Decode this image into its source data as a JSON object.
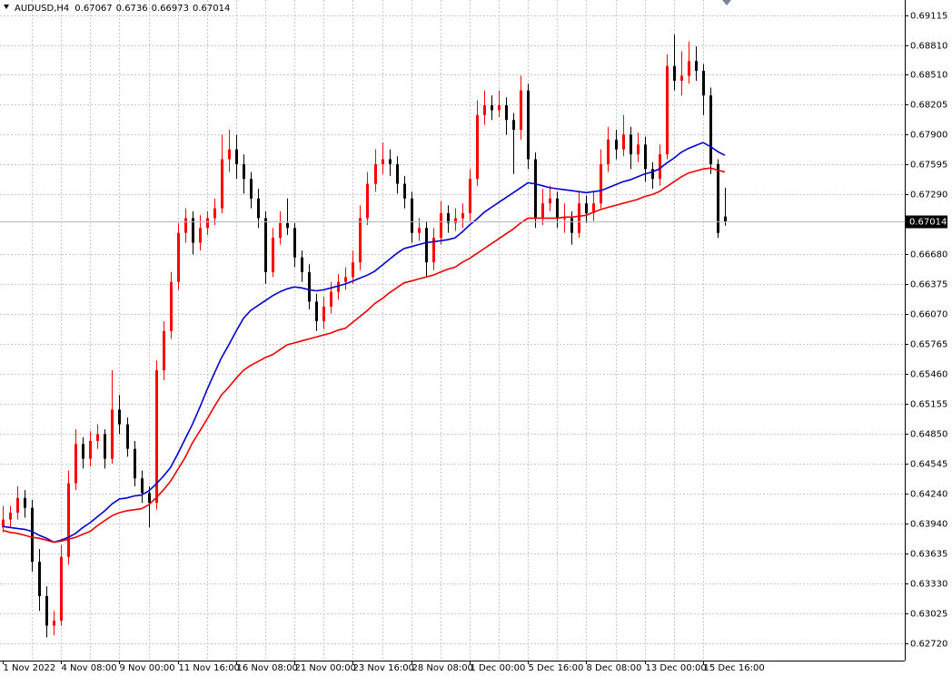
{
  "chart_data": {
    "type": "candlestick",
    "title": "AUDUSD,H4",
    "up_color": "#ff0000",
    "down_color": "#000000",
    "grid": true,
    "ylim": [
      0.62544,
      0.69272
    ],
    "yticks": [
      0.69115,
      {
        "value": 0.6881,
        "label": "0.68810"
      },
      {
        "value": 0.6851,
        "label": "0.68510"
      },
      0.68205,
      {
        "value": 0.679,
        "label": "0.67900"
      },
      0.67595,
      {
        "value": 0.6729,
        "label": "0.67290"
      },
      {
        "value": 0.6668,
        "label": "0.66680"
      },
      0.66375,
      {
        "value": 0.6607,
        "label": "0.66070"
      },
      0.65765,
      {
        "value": 0.6546,
        "label": "0.65460"
      },
      0.65155,
      {
        "value": 0.6485,
        "label": "0.64850"
      },
      0.64545,
      {
        "value": 0.6424,
        "label": "0.64240"
      },
      {
        "value": 0.6394,
        "label": "0.63940"
      },
      0.63635,
      {
        "value": 0.6333,
        "label": "0.63330"
      },
      0.63025,
      {
        "value": 0.6272,
        "label": "0.62720"
      }
    ],
    "xlabels": [
      "1 Nov 2022",
      "4 Nov 08:00",
      "9 Nov 00:00",
      "11 Nov 16:00",
      "16 Nov 08:00",
      "21 Nov 00:00",
      "23 Nov 16:00",
      "28 Nov 08:00",
      "1 Dec 00:00",
      "5 Dec 16:00",
      "8 Dec 08:00",
      "13 Dec 00:00",
      "15 Dec 16:00"
    ],
    "ohlc": [
      [
        0.639,
        0.6412,
        0.6385,
        0.6398
      ],
      [
        0.6398,
        0.6412,
        0.639,
        0.6405
      ],
      [
        0.6405,
        0.6432,
        0.6398,
        0.642
      ],
      [
        0.642,
        0.6428,
        0.64,
        0.641
      ],
      [
        0.641,
        0.6418,
        0.6345,
        0.6355
      ],
      [
        0.6355,
        0.6368,
        0.6305,
        0.632
      ],
      [
        0.632,
        0.633,
        0.6278,
        0.629
      ],
      [
        0.629,
        0.6305,
        0.628,
        0.6295
      ],
      [
        0.6295,
        0.6372,
        0.629,
        0.636
      ],
      [
        0.636,
        0.6448,
        0.6352,
        0.6435
      ],
      [
        0.6435,
        0.649,
        0.6428,
        0.6475
      ],
      [
        0.6475,
        0.6482,
        0.645,
        0.646
      ],
      [
        0.646,
        0.6488,
        0.6452,
        0.6478
      ],
      [
        0.6478,
        0.6495,
        0.647,
        0.6485
      ],
      [
        0.6485,
        0.649,
        0.645,
        0.646
      ],
      [
        0.646,
        0.655,
        0.6455,
        0.651
      ],
      [
        0.651,
        0.6525,
        0.6485,
        0.6495
      ],
      [
        0.6495,
        0.6502,
        0.6462,
        0.647
      ],
      [
        0.647,
        0.6478,
        0.6432,
        0.644
      ],
      [
        0.644,
        0.6448,
        0.6415,
        0.6425
      ],
      [
        0.6425,
        0.6432,
        0.639,
        0.6415
      ],
      [
        0.6415,
        0.656,
        0.6408,
        0.655
      ],
      [
        0.655,
        0.66,
        0.654,
        0.659
      ],
      [
        0.659,
        0.665,
        0.6582,
        0.664
      ],
      [
        0.664,
        0.67,
        0.6632,
        0.669
      ],
      [
        0.669,
        0.6715,
        0.668,
        0.6705
      ],
      [
        0.6705,
        0.6712,
        0.6668,
        0.668
      ],
      [
        0.668,
        0.6708,
        0.6672,
        0.6695
      ],
      [
        0.6695,
        0.6712,
        0.6688,
        0.6705
      ],
      [
        0.6705,
        0.6725,
        0.6698,
        0.6715
      ],
      [
        0.6715,
        0.679,
        0.671,
        0.6765
      ],
      [
        0.6765,
        0.6795,
        0.6752,
        0.6775
      ],
      [
        0.6775,
        0.679,
        0.6745,
        0.676
      ],
      [
        0.676,
        0.677,
        0.673,
        0.6745
      ],
      [
        0.6745,
        0.6752,
        0.6715,
        0.6725
      ],
      [
        0.6725,
        0.6735,
        0.6695,
        0.6705
      ],
      [
        0.6705,
        0.6712,
        0.6638,
        0.665
      ],
      [
        0.665,
        0.6695,
        0.6645,
        0.6685
      ],
      [
        0.6685,
        0.6712,
        0.6678,
        0.67
      ],
      [
        0.67,
        0.6725,
        0.6688,
        0.6695
      ],
      [
        0.6695,
        0.67,
        0.6655,
        0.6665
      ],
      [
        0.6665,
        0.6672,
        0.664,
        0.665
      ],
      [
        0.665,
        0.6658,
        0.6612,
        0.662
      ],
      [
        0.662,
        0.6628,
        0.659,
        0.66
      ],
      [
        0.66,
        0.6625,
        0.6592,
        0.6615
      ],
      [
        0.6615,
        0.664,
        0.6608,
        0.663
      ],
      [
        0.663,
        0.6648,
        0.6622,
        0.664
      ],
      [
        0.664,
        0.6655,
        0.6632,
        0.6645
      ],
      [
        0.6645,
        0.6672,
        0.6638,
        0.666
      ],
      [
        0.666,
        0.6718,
        0.6652,
        0.6705
      ],
      [
        0.6705,
        0.6752,
        0.6698,
        0.674
      ],
      [
        0.674,
        0.6775,
        0.6732,
        0.676
      ],
      [
        0.676,
        0.6782,
        0.675,
        0.6765
      ],
      [
        0.6765,
        0.6775,
        0.6748,
        0.676
      ],
      [
        0.676,
        0.6768,
        0.673,
        0.674
      ],
      [
        0.674,
        0.6748,
        0.6715,
        0.6725
      ],
      [
        0.6725,
        0.6732,
        0.668,
        0.669
      ],
      [
        0.669,
        0.6705,
        0.6682,
        0.6695
      ],
      [
        0.6695,
        0.6702,
        0.6645,
        0.666
      ],
      [
        0.666,
        0.6695,
        0.6652,
        0.6685
      ],
      [
        0.6685,
        0.6722,
        0.6678,
        0.671
      ],
      [
        0.671,
        0.6718,
        0.669,
        0.67
      ],
      [
        0.67,
        0.6715,
        0.6692,
        0.6705
      ],
      [
        0.6705,
        0.672,
        0.6695,
        0.671
      ],
      [
        0.671,
        0.6755,
        0.6702,
        0.6745
      ],
      [
        0.6745,
        0.6825,
        0.6738,
        0.681
      ],
      [
        0.681,
        0.6835,
        0.68,
        0.682
      ],
      [
        0.682,
        0.683,
        0.6805,
        0.6815
      ],
      [
        0.6815,
        0.6835,
        0.6808,
        0.682
      ],
      [
        0.682,
        0.6828,
        0.679,
        0.6805
      ],
      [
        0.6805,
        0.6812,
        0.675,
        0.6795
      ],
      [
        0.6795,
        0.685,
        0.6785,
        0.6835
      ],
      [
        0.6835,
        0.6842,
        0.6755,
        0.6765
      ],
      [
        0.6765,
        0.6772,
        0.6695,
        0.6705
      ],
      [
        0.6705,
        0.6735,
        0.6698,
        0.672
      ],
      [
        0.672,
        0.6738,
        0.6712,
        0.6725
      ],
      [
        0.6725,
        0.6732,
        0.6695,
        0.6705
      ],
      [
        0.6705,
        0.672,
        0.669,
        0.6705
      ],
      [
        0.6705,
        0.6712,
        0.6678,
        0.669
      ],
      [
        0.669,
        0.6732,
        0.6685,
        0.672
      ],
      [
        0.672,
        0.6728,
        0.67,
        0.671
      ],
      [
        0.671,
        0.6732,
        0.6702,
        0.672
      ],
      [
        0.672,
        0.6775,
        0.6715,
        0.676
      ],
      [
        0.676,
        0.6798,
        0.6752,
        0.6785
      ],
      [
        0.6785,
        0.6795,
        0.6765,
        0.6775
      ],
      [
        0.6775,
        0.681,
        0.6768,
        0.679
      ],
      [
        0.679,
        0.6798,
        0.6755,
        0.677
      ],
      [
        0.677,
        0.6792,
        0.6762,
        0.678
      ],
      [
        0.678,
        0.6788,
        0.6742,
        0.6755
      ],
      [
        0.6755,
        0.6762,
        0.6735,
        0.6745
      ],
      [
        0.6745,
        0.678,
        0.6738,
        0.677
      ],
      [
        0.677,
        0.6872,
        0.6765,
        0.686
      ],
      [
        0.686,
        0.6892,
        0.6835,
        0.6845
      ],
      [
        0.6845,
        0.6875,
        0.683,
        0.685
      ],
      [
        0.685,
        0.6885,
        0.6842,
        0.6865
      ],
      [
        0.6865,
        0.688,
        0.6845,
        0.6855
      ],
      [
        0.6855,
        0.6862,
        0.681,
        0.683
      ],
      [
        0.683,
        0.6838,
        0.675,
        0.676
      ],
      [
        0.676,
        0.6765,
        0.6685,
        0.669
      ],
      [
        0.67067,
        0.6736,
        0.66973,
        0.67014
      ]
    ],
    "series": [
      {
        "color": "#0000cc",
        "values": [
          0.6391,
          0.639,
          0.6389,
          0.6388,
          0.6386,
          0.6382,
          0.6379,
          0.6375,
          0.6377,
          0.638,
          0.6384,
          0.639,
          0.6395,
          0.6401,
          0.6407,
          0.6414,
          0.6419,
          0.642,
          0.6422,
          0.6423,
          0.6427,
          0.6434,
          0.6442,
          0.6451,
          0.6465,
          0.648,
          0.6495,
          0.6512,
          0.653,
          0.6547,
          0.6563,
          0.6576,
          0.659,
          0.6603,
          0.6611,
          0.6616,
          0.6621,
          0.6626,
          0.663,
          0.6633,
          0.6635,
          0.6634,
          0.6632,
          0.6631,
          0.6632,
          0.6634,
          0.6636,
          0.6638,
          0.6641,
          0.6644,
          0.6647,
          0.6651,
          0.6657,
          0.6663,
          0.6669,
          0.6674,
          0.6676,
          0.6678,
          0.668,
          0.6681,
          0.6682,
          0.6683,
          0.6685,
          0.6691,
          0.6698,
          0.6704,
          0.6711,
          0.6716,
          0.6721,
          0.6726,
          0.6731,
          0.6736,
          0.6741,
          0.674,
          0.6738,
          0.6736,
          0.6735,
          0.6734,
          0.6733,
          0.6732,
          0.6731,
          0.6732,
          0.6733,
          0.6736,
          0.6739,
          0.6742,
          0.6744,
          0.6747,
          0.675,
          0.6752,
          0.6755,
          0.6761,
          0.6766,
          0.6772,
          0.6776,
          0.6779,
          0.6782,
          0.6778,
          0.6773,
          0.6769
        ]
      },
      {
        "color": "#ee0000",
        "values": [
          0.6387,
          0.6385,
          0.6384,
          0.6382,
          0.638,
          0.6379,
          0.6377,
          0.6375,
          0.6376,
          0.6378,
          0.638,
          0.6383,
          0.6386,
          0.6392,
          0.6397,
          0.6402,
          0.6405,
          0.6407,
          0.6408,
          0.6409,
          0.6413,
          0.642,
          0.6428,
          0.6437,
          0.6449,
          0.6461,
          0.6476,
          0.6488,
          0.65,
          0.6513,
          0.6525,
          0.6533,
          0.6542,
          0.655,
          0.6555,
          0.6559,
          0.6563,
          0.6566,
          0.6571,
          0.6576,
          0.6578,
          0.658,
          0.6582,
          0.6584,
          0.6586,
          0.6588,
          0.6591,
          0.6593,
          0.6599,
          0.6605,
          0.6611,
          0.6618,
          0.6623,
          0.6629,
          0.6634,
          0.6639,
          0.6641,
          0.6643,
          0.6645,
          0.6647,
          0.665,
          0.6653,
          0.6655,
          0.666,
          0.6664,
          0.6669,
          0.6674,
          0.6679,
          0.6684,
          0.6689,
          0.6694,
          0.67,
          0.6705,
          0.6705,
          0.6705,
          0.6705,
          0.6705,
          0.6706,
          0.6706,
          0.6707,
          0.6708,
          0.6711,
          0.6714,
          0.6716,
          0.6718,
          0.672,
          0.6722,
          0.6724,
          0.6727,
          0.6729,
          0.6732,
          0.6737,
          0.6742,
          0.6747,
          0.6751,
          0.6753,
          0.6755,
          0.6756,
          0.6754,
          0.6752
        ]
      }
    ]
  }
}
